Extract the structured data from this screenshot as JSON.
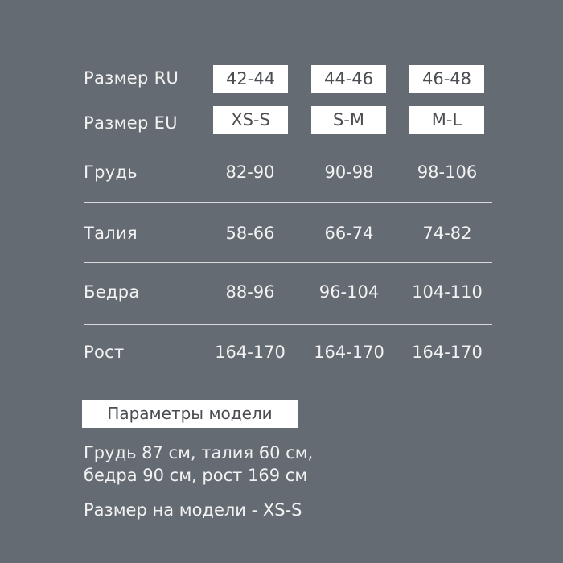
{
  "size_ru": {
    "label": "Размер RU",
    "values": [
      "42-44",
      "44-46",
      "46-48"
    ]
  },
  "size_eu": {
    "label": "Размер EU",
    "values": [
      "XS-S",
      "S-M",
      "M-L"
    ]
  },
  "rows": [
    {
      "label": "Грудь",
      "values": [
        "82-90",
        "90-98",
        "98-106"
      ]
    },
    {
      "label": "Талия",
      "values": [
        "58-66",
        "66-74",
        "74-82"
      ]
    },
    {
      "label": "Бедра",
      "values": [
        "88-96",
        "96-104",
        "104-110"
      ]
    },
    {
      "label": "Рост",
      "values": [
        "164-170",
        "164-170",
        "164-170"
      ]
    }
  ],
  "model": {
    "title": "Параметры модели",
    "line1": "Грудь 87 см,  талия 60 см,",
    "line2": "бедра 90 см, рост 169 см",
    "size_on_model": "Размер на модели - XS-S"
  },
  "colors": {
    "background": "#646b72",
    "box": "#ffffff",
    "box_text": "#4a4d52",
    "text": "#f2f2f2"
  }
}
